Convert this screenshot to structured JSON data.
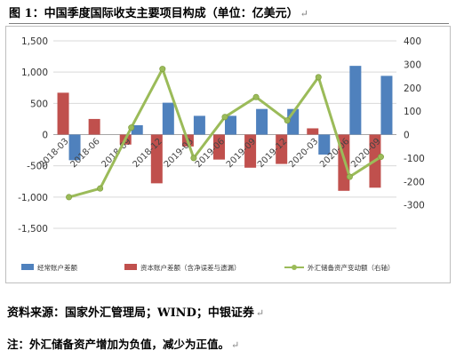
{
  "title": "图 1：中国季度国际收支主要项目构成（单位：亿美元）",
  "return_mark": "↵",
  "source": "资料来源：国家外汇管理局；WIND；中银证券",
  "note": "注：外汇储备资产增加为负值，减少为正值。",
  "colors": {
    "current": "#4f81bd",
    "capital": "#c0504d",
    "reserve": "#9bbb59",
    "grid": "#d9d9d9"
  },
  "chart_data": {
    "type": "bar",
    "categories": [
      "2018-03",
      "2018-06",
      "2018-09",
      "2018-12",
      "2019-03",
      "2019-06",
      "2019-09",
      "2019-12",
      "2020-03",
      "2020-06",
      "2020-09"
    ],
    "series": [
      {
        "name": "经常账户差额",
        "type": "bar",
        "axis": "left",
        "values": [
          -410,
          0,
          150,
          510,
          300,
          300,
          410,
          410,
          -320,
          1100,
          940
        ]
      },
      {
        "name": "资本账户差额（含净误差与遗漏）",
        "type": "bar",
        "axis": "left",
        "values": [
          670,
          250,
          -160,
          -780,
          -190,
          -400,
          -530,
          -470,
          100,
          -900,
          -850
        ]
      },
      {
        "name": "外汇储备资产变动额（右轴）",
        "type": "line",
        "axis": "right",
        "values": [
          -267,
          -230,
          30,
          280,
          -100,
          75,
          160,
          60,
          245,
          -180,
          -95
        ]
      }
    ],
    "y_left": {
      "min": -1500,
      "max": 1500,
      "ticks": [
        -1500,
        -1000,
        -500,
        0,
        500,
        1000,
        1500
      ],
      "tick_labels": [
        "-1,500",
        "-1,000",
        "-500",
        "0",
        "500",
        "1,000",
        "1,500"
      ]
    },
    "y_right": {
      "min": -400,
      "max": 400,
      "ticks": [
        -300,
        -200,
        -100,
        0,
        100,
        200,
        300,
        400
      ],
      "tick_labels": [
        "-300",
        "-200",
        "-100",
        "0",
        "100",
        "200",
        "300",
        "400"
      ]
    },
    "grid": true,
    "legend_position": "bottom"
  }
}
